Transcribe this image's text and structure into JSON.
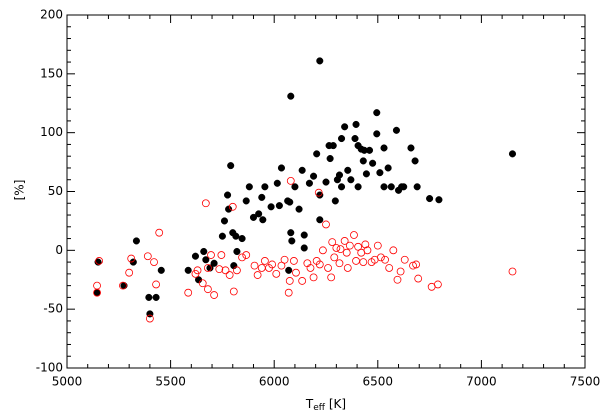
{
  "chart_data": {
    "type": "scatter",
    "xlabel": [
      "T",
      "eff",
      " [K]"
    ],
    "ylabel": "[%]",
    "xlim": [
      5000,
      7500
    ],
    "ylim": [
      -100,
      200
    ],
    "xticks": [
      5000,
      5500,
      6000,
      6500,
      7000,
      7500
    ],
    "yticks": [
      -100,
      -50,
      0,
      50,
      100,
      150,
      200
    ],
    "xminorticks": [
      5100,
      5200,
      5300,
      5400,
      5600,
      5700,
      5800,
      5900,
      6100,
      6200,
      6300,
      6400,
      6600,
      6700,
      6800,
      6900,
      7100,
      7200,
      7300,
      7400
    ],
    "yminorticks": [
      -90,
      -80,
      -70,
      -60,
      -40,
      -30,
      -20,
      -10,
      10,
      20,
      30,
      40,
      60,
      70,
      80,
      90,
      110,
      120,
      130,
      140,
      160,
      170,
      180,
      190
    ],
    "series": [
      {
        "color": "#000000",
        "marker": "filled",
        "x": [
          5145,
          5150,
          5275,
          5320,
          5335,
          5395,
          5430,
          5455,
          5400,
          5585,
          5620,
          5635,
          5660,
          5670,
          5690,
          5710,
          5750,
          5760,
          5780,
          5775,
          5790,
          5800,
          5815,
          5820,
          5805,
          5845,
          5865,
          5880,
          5900,
          5925,
          5940,
          5945,
          5955,
          5985,
          6025,
          6015,
          6035,
          6065,
          6075,
          6080,
          6080,
          6085,
          6070,
          6100,
          6120,
          6135,
          6145,
          6145,
          6170,
          6190,
          6205,
          6220,
          6220,
          6220,
          6250,
          6265,
          6270,
          6285,
          6295,
          6305,
          6315,
          6325,
          6325,
          6340,
          6355,
          6370,
          6395,
          6390,
          6405,
          6405,
          6420,
          6430,
          6435,
          6445,
          6460,
          6475,
          6495,
          6495,
          6510,
          6530,
          6530,
          6550,
          6565,
          6590,
          6600,
          6615,
          6625,
          6660,
          6680,
          6690,
          6750,
          6795,
          7150
        ],
        "y": [
          -36,
          -10,
          -30,
          -10,
          8,
          -40,
          -40,
          -17,
          -54,
          -17,
          -5,
          -25,
          -1,
          -8,
          -15,
          -11,
          12,
          25,
          35,
          47,
          72,
          15,
          12,
          -1,
          -13,
          10,
          42,
          54,
          28,
          31,
          45,
          26,
          54,
          37,
          38,
          57,
          70,
          42,
          41,
          131,
          15,
          8,
          -17,
          54,
          35,
          68,
          13,
          2,
          57,
          63,
          82,
          161,
          47,
          26,
          58,
          89,
          78,
          89,
          42,
          60,
          64,
          54,
          95,
          105,
          68,
          60,
          107,
          95,
          89,
          54,
          86,
          76,
          85,
          65,
          85,
          74,
          117,
          99,
          66,
          87,
          54,
          70,
          54,
          102,
          51,
          54,
          54,
          87,
          76,
          54,
          44,
          43,
          82
        ]
      },
      {
        "color": "#ff0000",
        "marker": "open",
        "x": [
          5145,
          5145,
          5155,
          5270,
          5300,
          5310,
          5390,
          5400,
          5420,
          5430,
          5445,
          5585,
          5620,
          5630,
          5655,
          5670,
          5680,
          5680,
          5695,
          5710,
          5735,
          5745,
          5765,
          5785,
          5800,
          5805,
          5820,
          5845,
          5865,
          5905,
          5920,
          5940,
          5955,
          5975,
          5990,
          6010,
          6035,
          6050,
          6070,
          6075,
          6080,
          6095,
          6105,
          6135,
          6160,
          6175,
          6190,
          6205,
          6215,
          6220,
          6235,
          6250,
          6260,
          6275,
          6280,
          6290,
          6300,
          6315,
          6320,
          6340,
          6350,
          6355,
          6365,
          6385,
          6395,
          6405,
          6420,
          6430,
          6440,
          6450,
          6470,
          6485,
          6500,
          6515,
          6535,
          6555,
          6575,
          6595,
          6610,
          6630,
          6670,
          6685,
          6695,
          6760,
          6790,
          7150
        ],
        "y": [
          -30,
          -36,
          -9,
          -30,
          -19,
          -7,
          -5,
          -58,
          -10,
          -29,
          15,
          -36,
          -20,
          -17,
          -28,
          40,
          -15,
          -33,
          -4,
          -38,
          -16,
          -4,
          -17,
          -21,
          37,
          -35,
          -17,
          -6,
          -4,
          -13,
          -21,
          -15,
          -9,
          -15,
          -12,
          -20,
          -13,
          -8,
          -36,
          -26,
          59,
          -9,
          -19,
          -26,
          -11,
          -15,
          -23,
          -9,
          49,
          -12,
          0,
          22,
          -15,
          -23,
          7,
          -6,
          2,
          -11,
          1,
          8,
          -2,
          -15,
          4,
          13,
          -9,
          3,
          -2,
          -10,
          5,
          0,
          -10,
          -8,
          4,
          -6,
          -8,
          -15,
          0,
          -25,
          -18,
          -8,
          -13,
          -12,
          -24,
          -31,
          -29,
          -18
        ]
      }
    ]
  }
}
